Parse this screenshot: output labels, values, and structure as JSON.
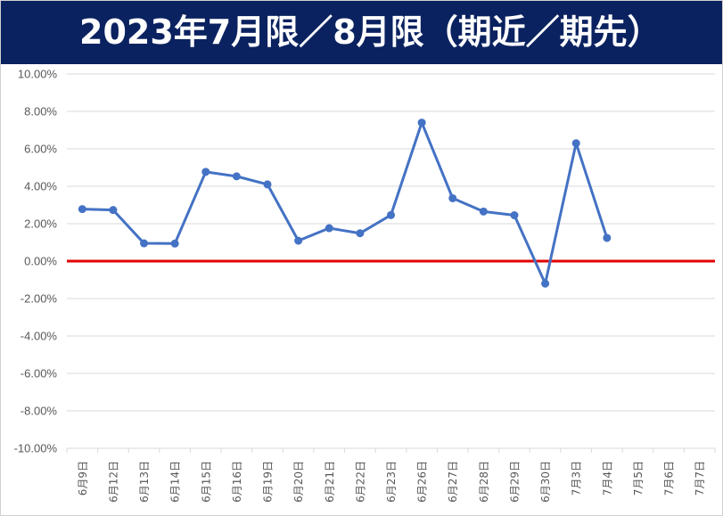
{
  "title": "2023年7月限／8月限（期近／期先）",
  "colors": {
    "title_bg": "#0b2260",
    "title_text": "#ffffff",
    "series_line": "#4472c4",
    "zero_line": "#e00000",
    "gridline": "#d9d9d9",
    "tick_text": "#595959"
  },
  "chart_data": {
    "type": "line",
    "title": "2023年7月限／8月限（期近／期先）",
    "xlabel": "",
    "ylabel": "",
    "ylim": [
      -0.1,
      0.1
    ],
    "y_ticks": [
      0.1,
      0.08,
      0.06,
      0.04,
      0.02,
      0.0,
      -0.02,
      -0.04,
      -0.06,
      -0.08,
      -0.1
    ],
    "y_tick_labels": [
      "10.00%",
      "8.00%",
      "6.00%",
      "4.00%",
      "2.00%",
      "0.00%",
      "-2.00%",
      "-4.00%",
      "-6.00%",
      "-8.00%",
      "-10.00%"
    ],
    "grid": true,
    "legend": "none",
    "categories": [
      "6月9日",
      "6月12日",
      "6月13日",
      "6月14日",
      "6月15日",
      "6月16日",
      "6月19日",
      "6月20日",
      "6月21日",
      "6月22日",
      "6月23日",
      "6月26日",
      "6月27日",
      "6月28日",
      "6月29日",
      "6月30日",
      "7月3日",
      "7月4日",
      "7月5日",
      "7月6日",
      "7月7日"
    ],
    "series": [
      {
        "values": [
          0.0278,
          0.0273,
          0.0095,
          0.0094,
          0.0477,
          0.0453,
          0.041,
          0.0109,
          0.0176,
          0.0149,
          0.0246,
          0.074,
          0.0336,
          0.0265,
          0.0245,
          -0.012,
          0.063,
          0.0124,
          null,
          null,
          null
        ]
      }
    ],
    "reference_line": 0.0
  }
}
